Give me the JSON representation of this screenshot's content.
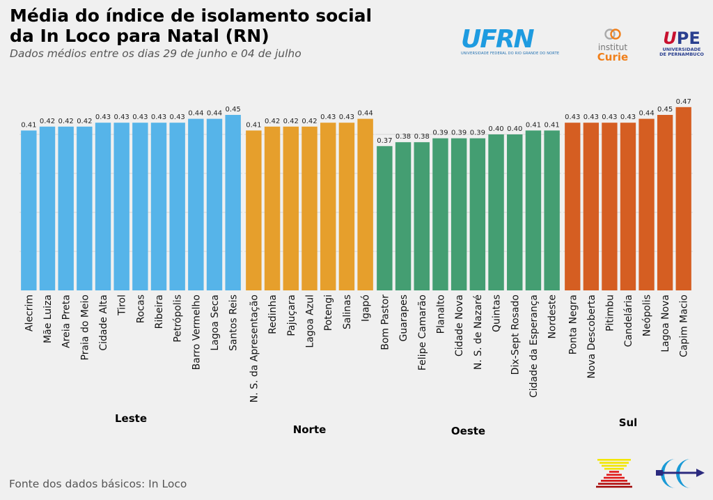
{
  "header": {
    "title_line1": "Média do índice de isolamento social",
    "title_line2": "da In Loco para Natal (RN)",
    "subtitle": "Dados médios entre os dias 29 de junho e 04 de julho"
  },
  "footer": {
    "source": "Fonte dos dados básicos: In Loco"
  },
  "logos": {
    "ufrn": {
      "name": "UFRN",
      "subtitle": "UNIVERSIDADE FEDERAL DO RIO GRANDE DO NORTE"
    },
    "curie": {
      "line1": "institut",
      "line2": "Curie"
    },
    "upe": {
      "name": "UPE",
      "line1": "UNIVERSIDADE",
      "line2": "DE PERNAMBUCO"
    }
  },
  "chart_data": {
    "type": "bar",
    "title": "Média do índice de isolamento social da In Loco para Natal (RN)",
    "subtitle": "Dados médios entre os dias 29 de junho e 04 de julho",
    "ylim": [
      0,
      0.5
    ],
    "yticks": [
      0.1,
      0.2,
      0.3,
      0.4
    ],
    "grid": true,
    "ytick_labels_visible": false,
    "groups": [
      {
        "name": "Leste",
        "color": "#56b4e9",
        "categories": [
          "Alecrim",
          "Mãe Luiza",
          "Areia Preta",
          "Praia do Meio",
          "Cidade Alta",
          "Tirol",
          "Rocas",
          "Ribeira",
          "Petrópolis",
          "Barro Vermelho",
          "Lagoa Seca",
          "Santos Reis"
        ],
        "values": [
          0.41,
          0.42,
          0.42,
          0.42,
          0.43,
          0.43,
          0.43,
          0.43,
          0.43,
          0.44,
          0.44,
          0.45
        ]
      },
      {
        "name": "Norte",
        "color": "#e69f2c",
        "categories": [
          "N. S. da Apresentação",
          "Redinha",
          "Pajuçara",
          "Lagoa Azul",
          "Potengi",
          "Salinas",
          "Igapó"
        ],
        "values": [
          0.41,
          0.42,
          0.42,
          0.42,
          0.43,
          0.43,
          0.44
        ]
      },
      {
        "name": "Oeste",
        "color": "#449e72",
        "categories": [
          "Bom Pastor",
          "Guarapes",
          "Felipe Camarão",
          "Planalto",
          "Cidade Nova",
          "N. S. de Nazaré",
          "Quintas",
          "Dix-Sept Rosado",
          "Cidade da Esperança",
          "Nordeste"
        ],
        "values": [
          0.37,
          0.38,
          0.38,
          0.39,
          0.39,
          0.39,
          0.4,
          0.4,
          0.41,
          0.41
        ]
      },
      {
        "name": "Sul",
        "color": "#d55e22",
        "categories": [
          "Ponta Negra",
          "Nova Descoberta",
          "Pitimbu",
          "Candelária",
          "Neópolis",
          "Lagoa Nova",
          "Capim Macio"
        ],
        "values": [
          0.43,
          0.43,
          0.43,
          0.43,
          0.44,
          0.45,
          0.47
        ]
      }
    ]
  }
}
